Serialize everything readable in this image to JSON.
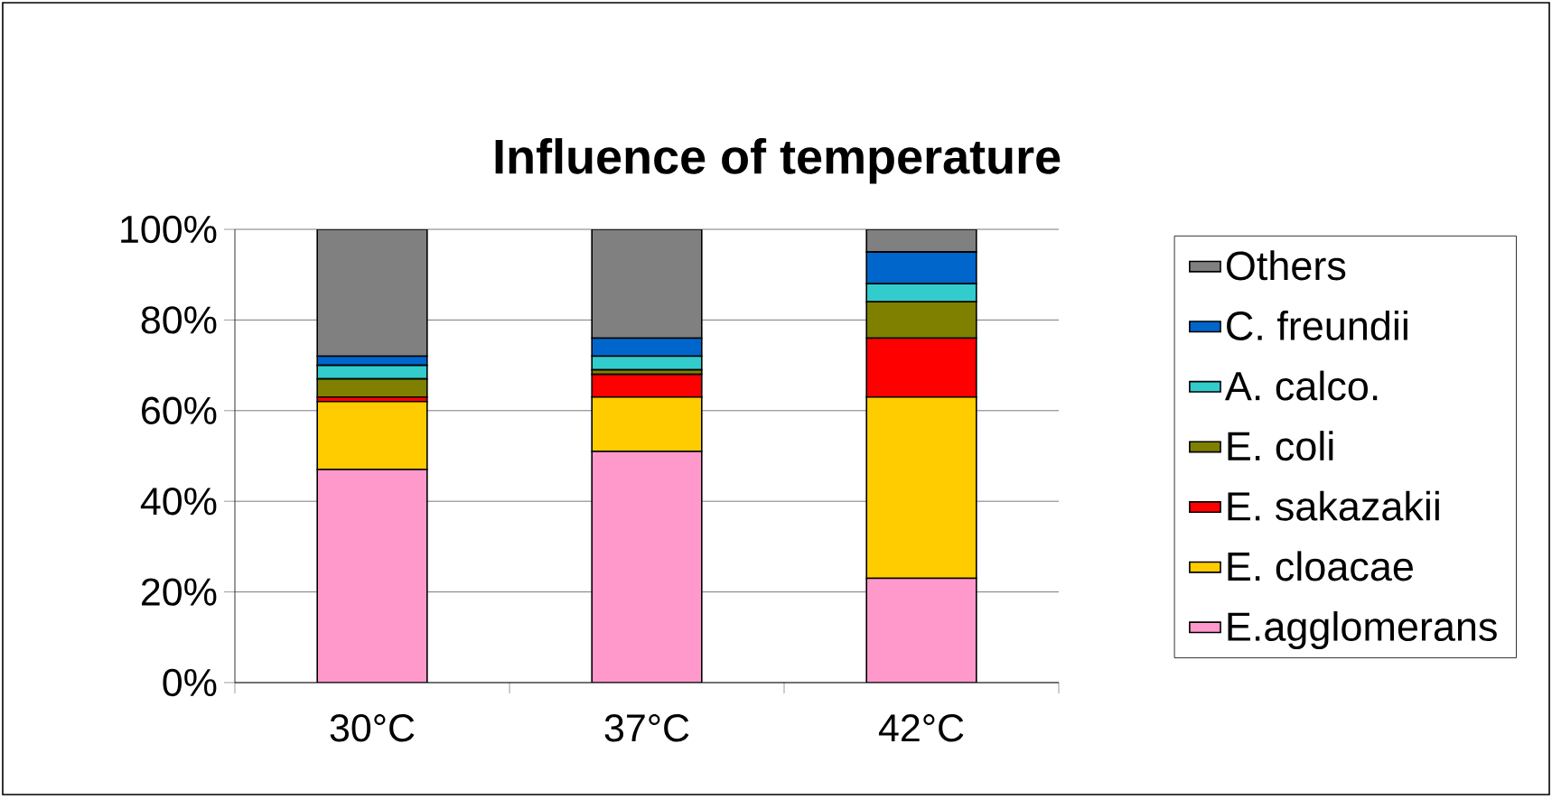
{
  "chart_data": {
    "type": "bar",
    "stacked": true,
    "title": "Influence of temperature",
    "categories": [
      "30°C",
      "37°C",
      "42°C"
    ],
    "series": [
      {
        "name": "E.agglomerans",
        "color": "#ff99cc",
        "values": [
          47,
          51,
          23
        ]
      },
      {
        "name": "E. cloacae",
        "color": "#ffcc00",
        "values": [
          15,
          12,
          40
        ]
      },
      {
        "name": "E. sakazakii",
        "color": "#ff0000",
        "values": [
          1,
          5,
          13
        ]
      },
      {
        "name": "E. coli",
        "color": "#808000",
        "values": [
          4,
          1,
          8
        ]
      },
      {
        "name": "A. calco.",
        "color": "#33cccc",
        "values": [
          3,
          3,
          4
        ]
      },
      {
        "name": "C. freundii",
        "color": "#0066cc",
        "values": [
          2,
          4,
          7
        ]
      },
      {
        "name": "Others",
        "color": "#808080",
        "values": [
          28,
          24,
          5
        ]
      }
    ],
    "ylim": [
      0,
      100
    ],
    "yticks": [
      {
        "value": 0,
        "label": "0%"
      },
      {
        "value": 20,
        "label": "20%"
      },
      {
        "value": 40,
        "label": "40%"
      },
      {
        "value": 60,
        "label": "60%"
      },
      {
        "value": 80,
        "label": "80%"
      },
      {
        "value": 100,
        "label": "100%"
      }
    ],
    "grid": "y",
    "legend": "right"
  }
}
